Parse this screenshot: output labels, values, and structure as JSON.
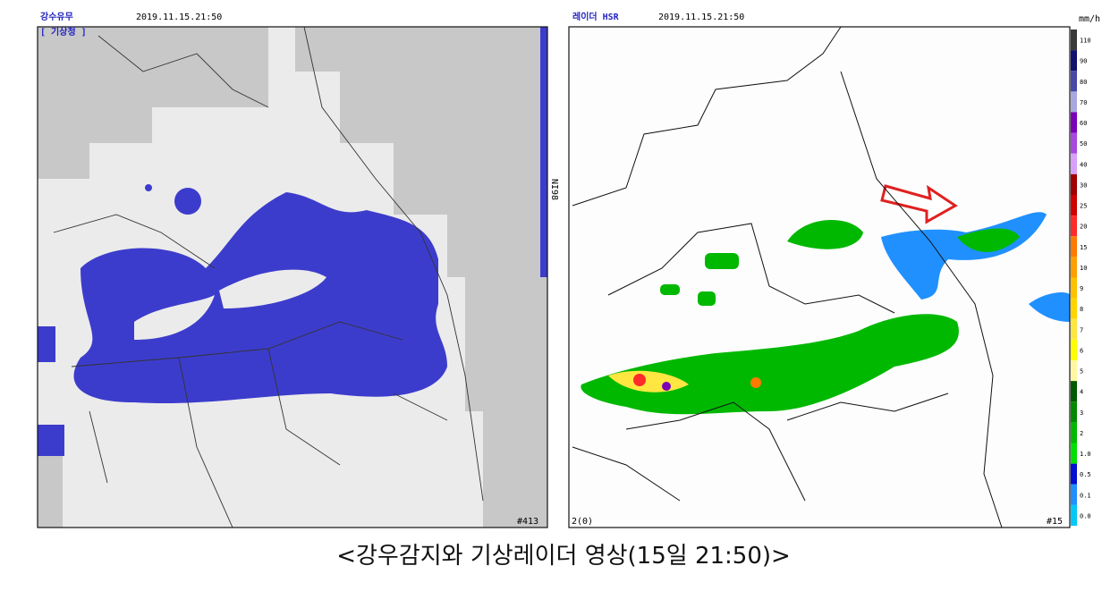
{
  "left_panel": {
    "title": "강수유무",
    "timestamp": "2019.11.15.21:50",
    "source": "[ 기상청 ]",
    "side_label": "NI98",
    "footer": "#413"
  },
  "right_panel": {
    "title": "레이더 HSR",
    "timestamp": "2019.11.15.21:50",
    "footer": "#15",
    "corner_label": "2(0)",
    "legend": {
      "unit": "mm/h",
      "items": [
        {
          "label": "110",
          "color": "#3a3a3a"
        },
        {
          "label": "90",
          "color": "#101070"
        },
        {
          "label": "80",
          "color": "#4848a8"
        },
        {
          "label": "70",
          "color": "#a8a8e0"
        },
        {
          "label": "60",
          "color": "#7a00b8"
        },
        {
          "label": "50",
          "color": "#a848e0"
        },
        {
          "label": "40",
          "color": "#d8a0f8"
        },
        {
          "label": "30",
          "color": "#a00000"
        },
        {
          "label": "25",
          "color": "#d00000"
        },
        {
          "label": "20",
          "color": "#ff2a2a"
        },
        {
          "label": "15",
          "color": "#ff7a00"
        },
        {
          "label": "10",
          "color": "#ffa000"
        },
        {
          "label": "9",
          "color": "#ffc000"
        },
        {
          "label": "8",
          "color": "#ffd400"
        },
        {
          "label": "7",
          "color": "#ffe640"
        },
        {
          "label": "6",
          "color": "#ffff00"
        },
        {
          "label": "5",
          "color": "#fff8a0"
        },
        {
          "label": "4",
          "color": "#005a00"
        },
        {
          "label": "3",
          "color": "#008a00"
        },
        {
          "label": "2",
          "color": "#00b800"
        },
        {
          "label": "1.0",
          "color": "#00e000"
        },
        {
          "label": "0.5",
          "color": "#0010d0"
        },
        {
          "label": "0.1",
          "color": "#2090ff"
        },
        {
          "label": "0.0",
          "color": "#00c8f8"
        }
      ]
    }
  },
  "caption": "<강우감지와 기상레이더 영상(15일 21:50)>"
}
